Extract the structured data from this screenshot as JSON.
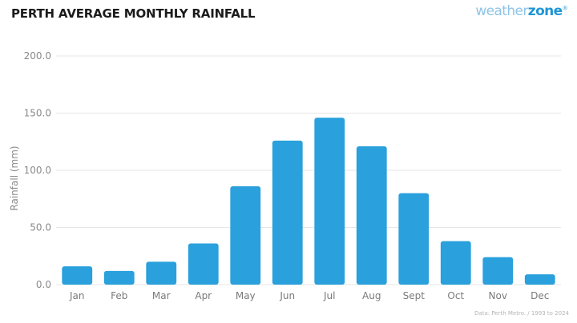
{
  "header": {
    "title": "PERTH AVERAGE MONTHLY RAINFALL",
    "logo_light": "weather",
    "logo_bold": "zone",
    "logo_mark": "®"
  },
  "source_note": "Data: Perth Metro. / 1993 to 2024",
  "colors": {
    "bar": "#2aa0dc",
    "grid": "#e6e6e6",
    "axis_text": "#8a8a8a"
  },
  "chart_data": {
    "type": "bar",
    "title": "PERTH AVERAGE MONTHLY RAINFALL",
    "xlabel": "",
    "ylabel": "Rainfall (mm)",
    "ylim": [
      0,
      200
    ],
    "yticks": [
      "0.0",
      "50.0",
      "100.0",
      "150.0",
      "200.0"
    ],
    "ytick_values": [
      0,
      50,
      100,
      150,
      200
    ],
    "grid": true,
    "categories": [
      "Jan",
      "Feb",
      "Mar",
      "Apr",
      "May",
      "Jun",
      "Jul",
      "Aug",
      "Sept",
      "Oct",
      "Nov",
      "Dec"
    ],
    "values": [
      16,
      12,
      20,
      36,
      86,
      126,
      146,
      121,
      80,
      38,
      24,
      9
    ]
  }
}
